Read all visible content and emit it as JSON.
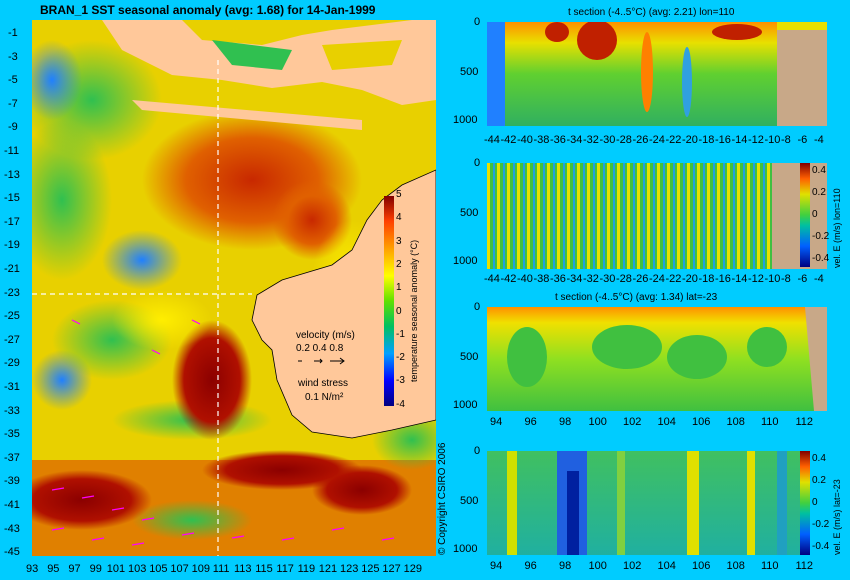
{
  "chart_data": [
    {
      "type": "heatmap",
      "title": "BRAN_1 SST seasonal anomaly (avg: 1.68) for 14-Jan-1999",
      "x_ticks": [
        "93",
        "95",
        "97",
        "99",
        "101",
        "103",
        "105",
        "107",
        "109",
        "111",
        "113",
        "115",
        "117",
        "119",
        "121",
        "123",
        "125",
        "127",
        "129"
      ],
      "y_ticks": [
        "-1",
        "-3",
        "-5",
        "-7",
        "-9",
        "-11",
        "-13",
        "-15",
        "-17",
        "-19",
        "-21",
        "-23",
        "-25",
        "-27",
        "-29",
        "-31",
        "-33",
        "-35",
        "-37",
        "-39",
        "-41",
        "-43",
        "-45"
      ],
      "colorbar": {
        "label": "temperature seasonal anomaly (°C)",
        "ticks": [
          "5",
          "4",
          "3",
          "2",
          "1",
          "0",
          "-1",
          "-2",
          "-3",
          "-4"
        ],
        "range": [
          -4,
          5
        ]
      },
      "legend": {
        "velocity_label": "velocity (m/s)",
        "velocity_values": "0.2 0.4 0.8",
        "wind_label": "wind stress",
        "wind_value": "0.1 N/m²"
      },
      "crosshair": {
        "lon": 110,
        "lat": -23
      }
    },
    {
      "type": "heatmap",
      "title": "t section (-4..5°C) (avg: 2.21) lon=110",
      "x_ticks": [
        "-44",
        "-42",
        "-40",
        "-38",
        "-36",
        "-34",
        "-32",
        "-30",
        "-28",
        "-26",
        "-24",
        "-22",
        "-20",
        "-18",
        "-16",
        "-14",
        "-12",
        "-10",
        "-8",
        "-6",
        "-4"
      ],
      "y_ticks": [
        "0",
        "500",
        "1000"
      ]
    },
    {
      "type": "heatmap",
      "title": "",
      "x_ticks": [
        "-44",
        "-42",
        "-40",
        "-38",
        "-36",
        "-34",
        "-32",
        "-30",
        "-28",
        "-26",
        "-24",
        "-22",
        "-20",
        "-18",
        "-16",
        "-14",
        "-12",
        "-10",
        "-8",
        "-6",
        "-4"
      ],
      "y_ticks": [
        "0",
        "500",
        "1000"
      ],
      "colorbar": {
        "label": "vel. E (m/s) lon=110",
        "ticks": [
          "0.4",
          "0.2",
          "0",
          "-0.2",
          "-0.4"
        ],
        "range": [
          -0.4,
          0.4
        ]
      }
    },
    {
      "type": "heatmap",
      "title": "t section (-4..5°C) (avg: 1.34) lat=-23",
      "x_ticks": [
        "94",
        "96",
        "98",
        "100",
        "102",
        "104",
        "106",
        "108",
        "110",
        "112"
      ],
      "y_ticks": [
        "0",
        "500",
        "1000"
      ]
    },
    {
      "type": "heatmap",
      "title": "",
      "x_ticks": [
        "94",
        "96",
        "98",
        "100",
        "102",
        "104",
        "106",
        "108",
        "110",
        "112"
      ],
      "y_ticks": [
        "0",
        "500",
        "1000"
      ],
      "colorbar": {
        "label": "vel. E (m/s) lat=-23",
        "ticks": [
          "0.4",
          "0.2",
          "0",
          "-0.2",
          "-0.4"
        ],
        "range": [
          -0.4,
          0.4
        ]
      }
    }
  ],
  "copyright": "© Copyright CSIRO 2006"
}
